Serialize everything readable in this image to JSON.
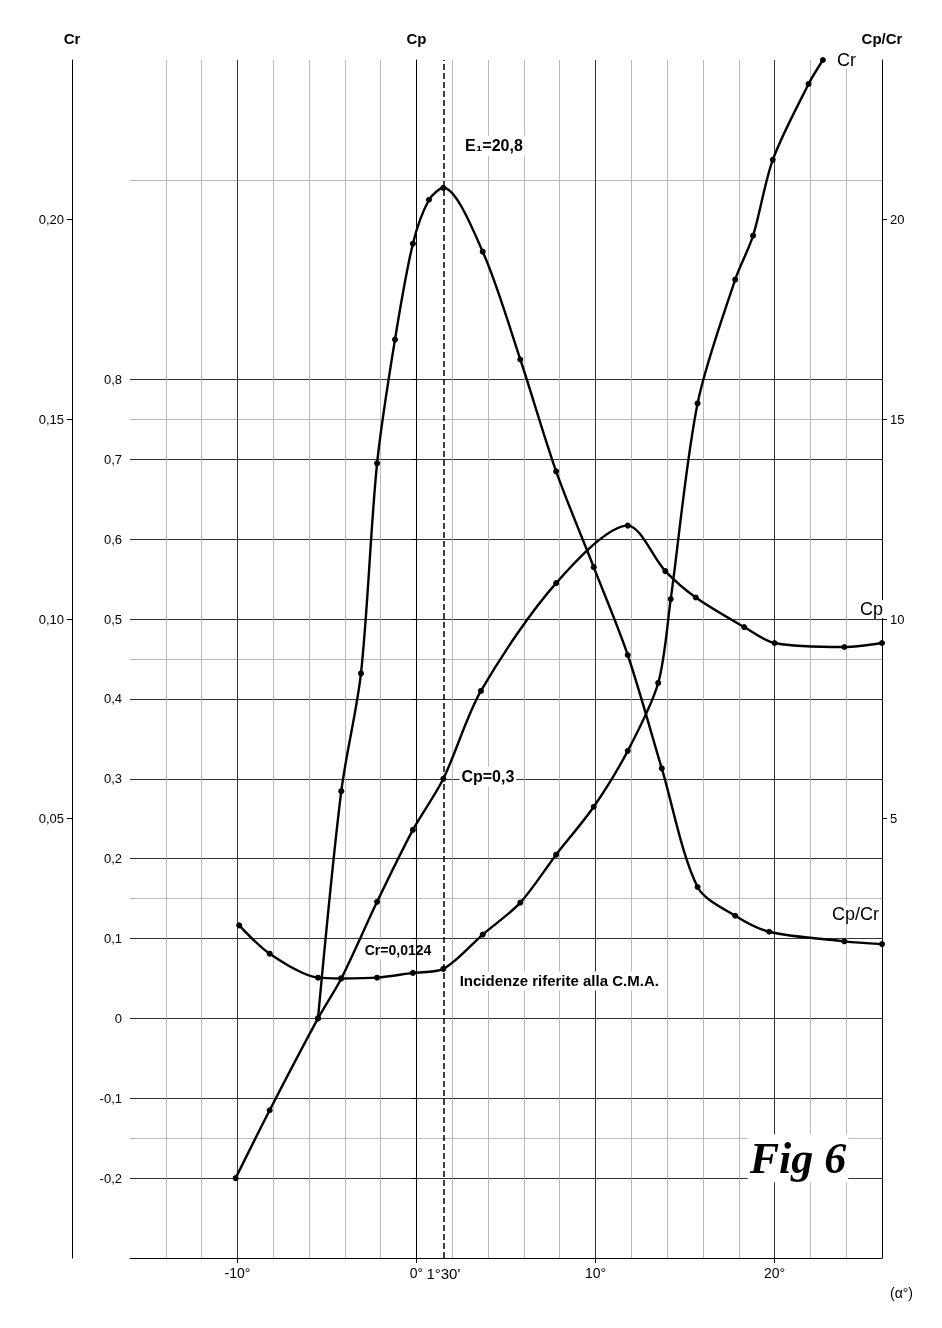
{
  "chart_data": {
    "type": "line",
    "ylabel": "Cp",
    "y2label": "Cr",
    "y3label": "Cp/Cr",
    "xlabel": "(α°)",
    "annotations": [
      "E₁=20,8",
      "Cp=0,3",
      "Cr=0,0124",
      "Incidenze riferite alla C.M.A.",
      "Fig 6"
    ],
    "xlim": [
      -16,
      26
    ],
    "xticks": [
      {
        "value": -10,
        "label": "-10°"
      },
      {
        "value": 0,
        "label": "0°"
      },
      {
        "value": 10,
        "label": "10°"
      },
      {
        "value": 20,
        "label": "20°"
      }
    ],
    "ylim": [
      -0.3,
      1.2
    ],
    "yticks": [
      {
        "value": -0.2,
        "label": "-0,2"
      },
      {
        "value": -0.1,
        "label": "-0,1"
      },
      0,
      {
        "value": 0.1,
        "label": "0,1"
      },
      {
        "value": 0.2,
        "label": "0,2"
      },
      {
        "value": 0.3,
        "label": "0,3"
      },
      {
        "value": 0.4,
        "label": "0,4"
      },
      {
        "value": 0.5,
        "label": "0,5"
      },
      {
        "value": 0.6,
        "label": "0,6"
      },
      {
        "value": 0.7,
        "label": "0,7"
      },
      {
        "value": 0.8,
        "label": "0,8"
      }
    ],
    "y2lim": [
      -0.06,
      0.24
    ],
    "y2ticks": [
      {
        "value": 0.05,
        "label": "0,05"
      },
      {
        "value": 0.1,
        "label": "0,10"
      },
      {
        "value": 0.15,
        "label": "0,15"
      },
      {
        "value": 0.2,
        "label": "0,20"
      }
    ],
    "y3lim": [
      -6,
      24
    ],
    "y3ticks": [
      5,
      10,
      15,
      20
    ],
    "ref_lines": [
      {
        "axis": "x",
        "value": 1.5,
        "label": "1°30'",
        "line_style": "dashed",
        "color": "#000000"
      }
    ],
    "series": [
      {
        "name": "Cp",
        "color": "#000000",
        "x": [
          -10.1,
          -8.2,
          -5.5,
          -4.2,
          -2.2,
          -0.2,
          1.5,
          3.6,
          7.8,
          11.8,
          13.9,
          15.6,
          18.3,
          20,
          23.9,
          26
        ],
        "values": [
          -0.2,
          -0.115,
          0,
          0.05,
          0.146,
          0.236,
          0.3,
          0.41,
          0.545,
          0.617,
          0.56,
          0.527,
          0.49,
          0.47,
          0.465,
          0.47
        ]
      },
      {
        "name": "Cr",
        "color": "#000000",
        "axis": "y2",
        "x": [
          -9.9,
          -8.2,
          -5.5,
          -4.2,
          -2.2,
          -0.2,
          1.5,
          3.7,
          5.8,
          7.8,
          9.9,
          11.8,
          13.5,
          14.2,
          15.7,
          17.8,
          18.8,
          19.9,
          21.9,
          22.7
        ],
        "values": [
          0.0233,
          0.0162,
          0.0102,
          0.01,
          0.0102,
          0.0114,
          0.0124,
          0.021,
          0.029,
          0.041,
          0.053,
          0.067,
          0.084,
          0.105,
          0.154,
          0.185,
          0.196,
          0.215,
          0.234,
          0.24
        ]
      },
      {
        "name": "Cp/Cr",
        "color": "#000000",
        "axis": "y3",
        "x": [
          -5.5,
          -4.2,
          -3.1,
          -2.2,
          -1.2,
          -0.2,
          0.7,
          1.5,
          3.7,
          5.8,
          7.8,
          9.9,
          11.8,
          13.7,
          15.7,
          17.8,
          19.7,
          23.9,
          26
        ],
        "values": [
          0,
          5.69,
          8.64,
          13.9,
          17,
          19.4,
          20.5,
          20.8,
          19.2,
          16.5,
          13.7,
          11.3,
          9.1,
          6.26,
          3.29,
          2.57,
          2.17,
          1.93,
          1.86
        ]
      }
    ],
    "grid": true,
    "legend": false,
    "marker": "circle",
    "line_style": "solid"
  }
}
